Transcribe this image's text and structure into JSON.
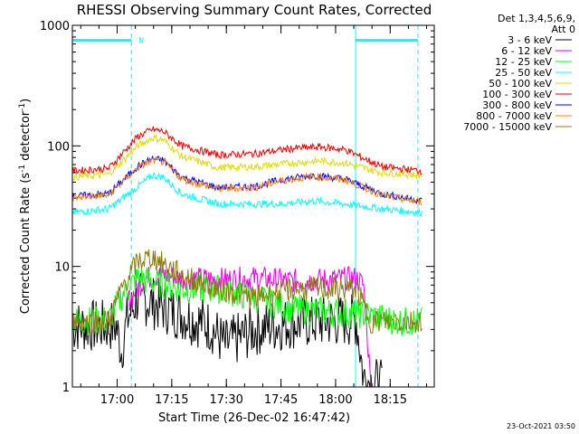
{
  "chart_data": {
    "type": "line",
    "title": "RHESSI Observing Summary Count Rates, Corrected",
    "xlabel": "Start Time (26-Dec-02 16:47:42)",
    "ylabel": "Corrected Count Rate (s",
    "ylabel_sup": "-1",
    "ylabel_mid": " detector",
    "ylabel_sup2": "-1",
    "ylabel_end": ")",
    "y_scale": "log",
    "ylim": [
      1,
      1000
    ],
    "x_unit": "minutes after 16:47:42",
    "xlim": [
      0,
      99.4
    ],
    "y_ticks": [
      {
        "value": 1,
        "label": "1"
      },
      {
        "value": 10,
        "label": "10"
      },
      {
        "value": 100,
        "label": "100"
      },
      {
        "value": 1000,
        "label": "1000"
      }
    ],
    "x_ticks": [
      {
        "value": 12.3,
        "label": "17:00"
      },
      {
        "value": 27.3,
        "label": "17:15"
      },
      {
        "value": 42.3,
        "label": "17:30"
      },
      {
        "value": 57.3,
        "label": "17:45"
      },
      {
        "value": 72.3,
        "label": "18:00"
      },
      {
        "value": 87.3,
        "label": "18:15"
      }
    ],
    "legend_header": [
      "Det 1,3,4,5,6,9,",
      "Att 0"
    ],
    "legend_position": "outside-right",
    "series": [
      {
        "name": "3 - 6 keV",
        "color": "#000000",
        "points": [
          [
            0,
            3.2
          ],
          [
            12,
            3.2
          ],
          [
            13.5,
            2
          ],
          [
            15,
            3.6
          ],
          [
            18,
            5.5
          ],
          [
            22,
            5
          ],
          [
            30,
            4
          ],
          [
            38,
            3.2
          ],
          [
            42,
            2.2
          ],
          [
            50,
            3
          ],
          [
            60,
            3.4
          ],
          [
            70,
            3.5
          ],
          [
            78,
            3.6
          ],
          [
            80,
            1.2
          ],
          [
            85,
            1
          ]
        ]
      },
      {
        "name": "6 - 12 keV",
        "color": "#e600e6",
        "points": [
          [
            15,
            5
          ],
          [
            20,
            8
          ],
          [
            25,
            8.5
          ],
          [
            30,
            8
          ],
          [
            40,
            7.8
          ],
          [
            50,
            8
          ],
          [
            60,
            7.6
          ],
          [
            70,
            7.8
          ],
          [
            78,
            8
          ],
          [
            80,
            7
          ],
          [
            82,
            1
          ]
        ]
      },
      {
        "name": "12 - 25 keV",
        "color": "#00ff00",
        "points": [
          [
            0,
            3.5
          ],
          [
            10,
            3.6
          ],
          [
            14,
            6
          ],
          [
            18,
            8
          ],
          [
            22,
            7.5
          ],
          [
            30,
            6.5
          ],
          [
            40,
            6.5
          ],
          [
            50,
            5.5
          ],
          [
            60,
            4.5
          ],
          [
            70,
            4.2
          ],
          [
            80,
            4
          ],
          [
            90,
            3.5
          ],
          [
            96,
            3.5
          ]
        ]
      },
      {
        "name": "25 - 50 keV",
        "color": "#00ffff",
        "points": [
          [
            0,
            28
          ],
          [
            10,
            30
          ],
          [
            18,
            46
          ],
          [
            22,
            57
          ],
          [
            25,
            55
          ],
          [
            30,
            40
          ],
          [
            40,
            33
          ],
          [
            50,
            33
          ],
          [
            57,
            33
          ],
          [
            66,
            35
          ],
          [
            75,
            33
          ],
          [
            85,
            30
          ],
          [
            96,
            28
          ]
        ]
      },
      {
        "name": "50 - 100 keV",
        "color": "#dddd00",
        "points": [
          [
            0,
            55
          ],
          [
            10,
            58
          ],
          [
            18,
            100
          ],
          [
            22,
            117
          ],
          [
            25,
            112
          ],
          [
            30,
            82
          ],
          [
            40,
            66
          ],
          [
            50,
            67
          ],
          [
            60,
            72
          ],
          [
            68,
            75
          ],
          [
            75,
            72
          ],
          [
            85,
            60
          ],
          [
            96,
            57
          ]
        ]
      },
      {
        "name": "100 - 300 keV",
        "color": "#ee0000",
        "points": [
          [
            0,
            62
          ],
          [
            10,
            65
          ],
          [
            18,
            120
          ],
          [
            22,
            137
          ],
          [
            25,
            132
          ],
          [
            30,
            100
          ],
          [
            40,
            84
          ],
          [
            50,
            86
          ],
          [
            60,
            95
          ],
          [
            68,
            98
          ],
          [
            75,
            93
          ],
          [
            85,
            67
          ],
          [
            96,
            62
          ]
        ]
      },
      {
        "name": "300 - 800 keV",
        "color": "#0000ff",
        "points": [
          [
            0,
            38
          ],
          [
            10,
            40
          ],
          [
            18,
            68
          ],
          [
            22,
            78
          ],
          [
            25,
            76
          ],
          [
            30,
            55
          ],
          [
            40,
            45
          ],
          [
            50,
            46
          ],
          [
            57,
            52
          ],
          [
            66,
            57
          ],
          [
            75,
            53
          ],
          [
            85,
            40
          ],
          [
            96,
            35
          ]
        ]
      },
      {
        "name": "800 - 7000 keV",
        "color": "#ff8000",
        "points": [
          [
            0,
            37
          ],
          [
            10,
            39
          ],
          [
            18,
            66
          ],
          [
            22,
            76
          ],
          [
            25,
            74
          ],
          [
            30,
            53
          ],
          [
            40,
            44
          ],
          [
            50,
            45
          ],
          [
            57,
            51
          ],
          [
            66,
            56
          ],
          [
            75,
            52
          ],
          [
            85,
            39
          ],
          [
            96,
            34
          ]
        ]
      },
      {
        "name": "7000 - 15000 keV",
        "color": "#8b7a10",
        "points": [
          [
            0,
            3.5
          ],
          [
            10,
            3.5
          ],
          [
            14,
            7
          ],
          [
            18,
            11
          ],
          [
            22,
            12
          ],
          [
            26,
            10
          ],
          [
            30,
            8.5
          ],
          [
            40,
            6.5
          ],
          [
            50,
            5.5
          ],
          [
            60,
            6.5
          ],
          [
            70,
            6.5
          ],
          [
            78,
            6.5
          ],
          [
            82,
            3.5
          ],
          [
            90,
            3.5
          ],
          [
            96,
            3.5
          ]
        ]
      }
    ],
    "annotations": [
      {
        "type": "vline",
        "x": 0,
        "color": "#00ffff",
        "style": "solid"
      },
      {
        "type": "vline",
        "x": 16.2,
        "color": "#00ffff",
        "style": "dashed"
      },
      {
        "type": "vline",
        "x": 77.8,
        "color": "#00ffff",
        "style": "solid"
      },
      {
        "type": "vline",
        "x": 94.9,
        "color": "#00ffff",
        "style": "dashed"
      },
      {
        "type": "hbar",
        "x0": 0,
        "x1": 16.2,
        "y": 750,
        "color": "#00ffff"
      },
      {
        "type": "hbar",
        "x0": 77.8,
        "x1": 94.9,
        "y": 750,
        "color": "#00ffff"
      },
      {
        "type": "label",
        "x": 18.9,
        "y": 750,
        "text": "N",
        "color": "#00ffff"
      }
    ],
    "grid": false
  },
  "footer_stamp": "23-Oct-2021 03:50"
}
